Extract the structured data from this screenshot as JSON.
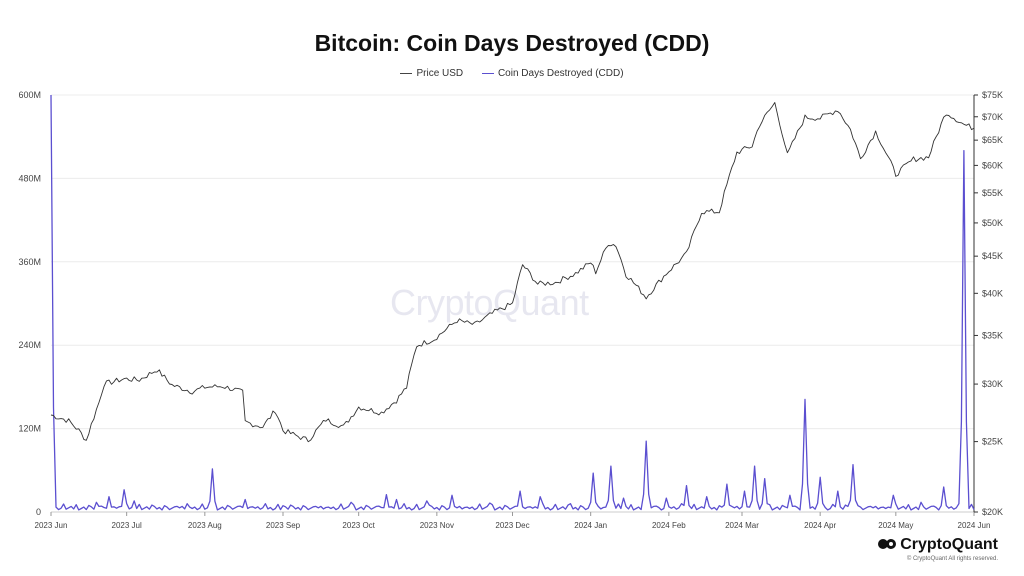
{
  "chart_data": {
    "type": "line",
    "title": "Bitcoin: Coin Days Destroyed (CDD)",
    "legend_position": "top-center",
    "grid": true,
    "x_ticks": [
      "2023 Jun",
      "2023 Jul",
      "2023 Aug",
      "2023 Sep",
      "2023 Oct",
      "2023 Nov",
      "2023 Dec",
      "2024 Jan",
      "2024 Feb",
      "2024 Mar",
      "2024 Apr",
      "2024 May",
      "2024 Jun"
    ],
    "x_range": [
      "2023-06-01",
      "2024-06-01"
    ],
    "y_left": {
      "ticks": [
        "0",
        "120M",
        "240M",
        "360M",
        "480M",
        "600M"
      ],
      "range": [
        0,
        600000000
      ],
      "series": "Coin Days Destroyed (CDD)"
    },
    "y_right": {
      "ticks": [
        "$20K",
        "$25K",
        "$30K",
        "$35K",
        "$40K",
        "$45K",
        "$50K",
        "$55K",
        "$60K",
        "$65K",
        "$70K",
        "$75K"
      ],
      "range": [
        20000,
        75000
      ],
      "scale": "log",
      "series": "Price USD"
    },
    "series": [
      {
        "name": "Price USD",
        "axis": "right",
        "color": "#333333",
        "points": [
          [
            "2023-06-01",
            27200
          ],
          [
            "2023-06-08",
            26700
          ],
          [
            "2023-06-12",
            25900
          ],
          [
            "2023-06-15",
            25100
          ],
          [
            "2023-06-20",
            28300
          ],
          [
            "2023-06-22",
            30000
          ],
          [
            "2023-06-30",
            30500
          ],
          [
            "2023-07-06",
            30400
          ],
          [
            "2023-07-13",
            31400
          ],
          [
            "2023-07-19",
            29900
          ],
          [
            "2023-07-27",
            29300
          ],
          [
            "2023-08-01",
            29700
          ],
          [
            "2023-08-08",
            29800
          ],
          [
            "2023-08-14",
            29400
          ],
          [
            "2023-08-16",
            29200
          ],
          [
            "2023-08-17",
            26600
          ],
          [
            "2023-08-24",
            26200
          ],
          [
            "2023-08-29",
            27600
          ],
          [
            "2023-09-01",
            25900
          ],
          [
            "2023-09-11",
            25100
          ],
          [
            "2023-09-18",
            26800
          ],
          [
            "2023-09-25",
            26200
          ],
          [
            "2023-10-01",
            27900
          ],
          [
            "2023-10-10",
            27400
          ],
          [
            "2023-10-16",
            28500
          ],
          [
            "2023-10-20",
            29700
          ],
          [
            "2023-10-24",
            33900
          ],
          [
            "2023-10-31",
            34600
          ],
          [
            "2023-11-09",
            36700
          ],
          [
            "2023-11-16",
            36200
          ],
          [
            "2023-11-24",
            37700
          ],
          [
            "2023-12-01",
            38700
          ],
          [
            "2023-12-05",
            43800
          ],
          [
            "2023-12-11",
            41200
          ],
          [
            "2023-12-18",
            41400
          ],
          [
            "2023-12-26",
            42600
          ],
          [
            "2024-01-01",
            44100
          ],
          [
            "2024-01-03",
            42800
          ],
          [
            "2024-01-08",
            46900
          ],
          [
            "2024-01-11",
            46600
          ],
          [
            "2024-01-15",
            42500
          ],
          [
            "2024-01-23",
            39500
          ],
          [
            "2024-01-31",
            42600
          ],
          [
            "2024-02-08",
            45300
          ],
          [
            "2024-02-14",
            51800
          ],
          [
            "2024-02-21",
            51800
          ],
          [
            "2024-02-28",
            62500
          ],
          [
            "2024-03-05",
            63800
          ],
          [
            "2024-03-08",
            68300
          ],
          [
            "2024-03-14",
            73100
          ],
          [
            "2024-03-19",
            62000
          ],
          [
            "2024-03-26",
            69900
          ],
          [
            "2024-04-01",
            69700
          ],
          [
            "2024-04-08",
            71600
          ],
          [
            "2024-04-13",
            67200
          ],
          [
            "2024-04-17",
            61300
          ],
          [
            "2024-04-23",
            66800
          ],
          [
            "2024-05-01",
            58300
          ],
          [
            "2024-05-08",
            61200
          ],
          [
            "2024-05-14",
            61600
          ],
          [
            "2024-05-21",
            71000
          ],
          [
            "2024-05-28",
            68300
          ],
          [
            "2024-06-01",
            67500
          ]
        ]
      },
      {
        "name": "Coin Days Destroyed (CDD)",
        "axis": "left",
        "color": "#5b4fd0",
        "spikes": [
          [
            "2023-06-01",
            600000000
          ],
          [
            "2023-06-19",
            14000000
          ],
          [
            "2023-06-24",
            22000000
          ],
          [
            "2023-06-30",
            32000000
          ],
          [
            "2023-07-04",
            16000000
          ],
          [
            "2023-07-25",
            12000000
          ],
          [
            "2023-08-04",
            62000000
          ],
          [
            "2023-08-17",
            18000000
          ],
          [
            "2023-09-01",
            9000000
          ],
          [
            "2023-09-28",
            14000000
          ],
          [
            "2023-10-12",
            25000000
          ],
          [
            "2023-10-16",
            18000000
          ],
          [
            "2023-10-28",
            16000000
          ],
          [
            "2023-11-07",
            24000000
          ],
          [
            "2023-11-22",
            13000000
          ],
          [
            "2023-12-04",
            30000000
          ],
          [
            "2023-12-12",
            22000000
          ],
          [
            "2023-12-24",
            12000000
          ],
          [
            "2024-01-02",
            56000000
          ],
          [
            "2024-01-09",
            66000000
          ],
          [
            "2024-01-14",
            20000000
          ],
          [
            "2024-01-23",
            102000000
          ],
          [
            "2024-01-31",
            20000000
          ],
          [
            "2024-02-08",
            38000000
          ],
          [
            "2024-02-16",
            22000000
          ],
          [
            "2024-02-24",
            40000000
          ],
          [
            "2024-03-02",
            30000000
          ],
          [
            "2024-03-06",
            66000000
          ],
          [
            "2024-03-10",
            48000000
          ],
          [
            "2024-03-20",
            24000000
          ],
          [
            "2024-03-26",
            162000000
          ],
          [
            "2024-04-01",
            50000000
          ],
          [
            "2024-04-08",
            30000000
          ],
          [
            "2024-04-14",
            68000000
          ],
          [
            "2024-04-30",
            24000000
          ],
          [
            "2024-05-11",
            14000000
          ],
          [
            "2024-05-20",
            36000000
          ],
          [
            "2024-05-27",
            10000000
          ],
          [
            "2024-05-28",
            520000000
          ]
        ]
      }
    ]
  },
  "legend": {
    "price": "Price USD",
    "cdd": "Coin Days Destroyed (CDD)"
  },
  "watermark": "CryptoQuant",
  "brand": {
    "name": "CryptoQuant",
    "copyright": "© CryptoQuant All rights reserved."
  }
}
